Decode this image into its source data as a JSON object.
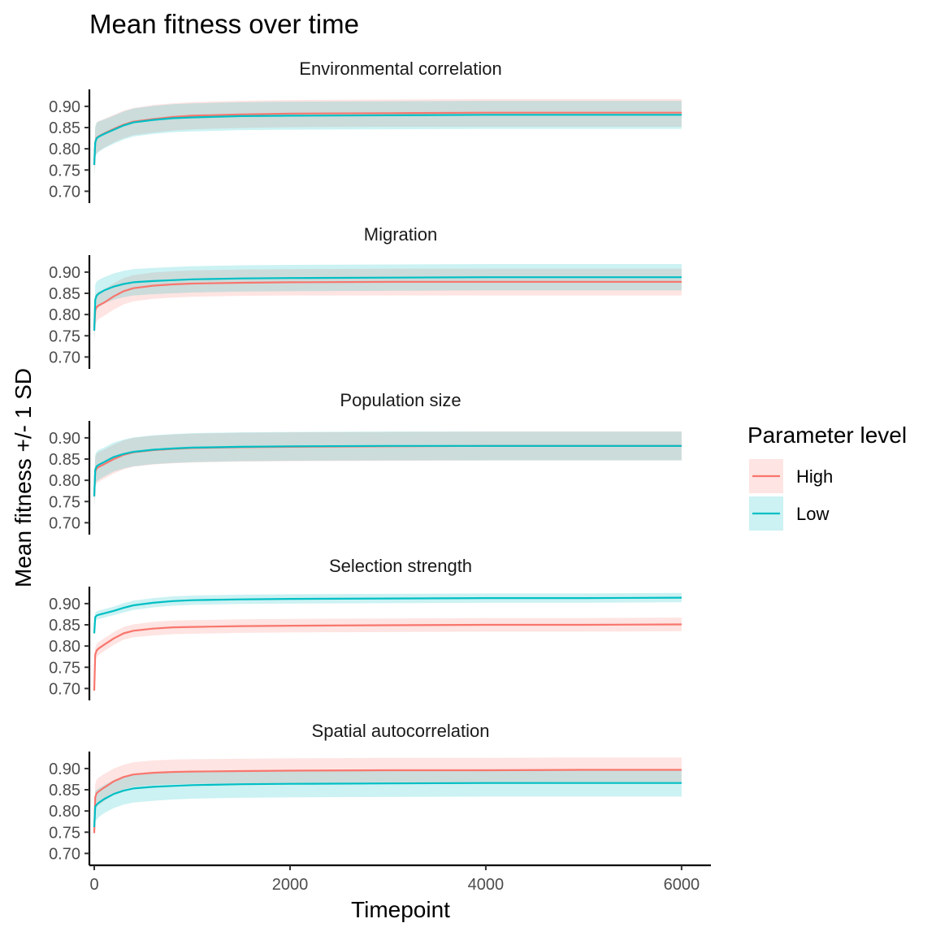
{
  "chart_data": {
    "type": "line",
    "title": "Mean fitness over time",
    "xlabel": "Timepoint",
    "ylabel": "Mean fitness +/- 1 SD",
    "xlim": [
      -50,
      6300
    ],
    "ylim": [
      0.672,
      0.94
    ],
    "x_ticks": [
      0,
      2000,
      4000,
      6000
    ],
    "y_ticks": [
      0.7,
      0.75,
      0.8,
      0.85,
      0.9
    ],
    "x_tick_labels": [
      "0",
      "2000",
      "4000",
      "6000"
    ],
    "y_tick_labels": [
      "0.70",
      "0.75",
      "0.80",
      "0.85",
      "0.90"
    ],
    "legend": {
      "title": "Parameter level",
      "position": "right",
      "entries": [
        {
          "label": "High",
          "color": "#F8766D"
        },
        {
          "label": "Low",
          "color": "#00BFC4"
        }
      ]
    },
    "grid": false,
    "bands": "mean +/- 1 SD ribbons",
    "x": [
      0,
      10,
      25,
      50,
      100,
      200,
      300,
      400,
      600,
      800,
      1000,
      1500,
      2000,
      3000,
      4000,
      5000,
      6000
    ],
    "panels": [
      {
        "strip": "Environmental correlation",
        "series": [
          {
            "name": "High",
            "mean": [
              0.762,
              0.815,
              0.826,
              0.83,
              0.836,
              0.847,
              0.857,
              0.864,
              0.87,
              0.875,
              0.878,
              0.881,
              0.883,
              0.884,
              0.885,
              0.885,
              0.885
            ],
            "lower": [
              0.735,
              0.78,
              0.79,
              0.795,
              0.803,
              0.815,
              0.825,
              0.832,
              0.838,
              0.843,
              0.846,
              0.849,
              0.851,
              0.852,
              0.852,
              0.852,
              0.852
            ],
            "upper": [
              0.789,
              0.85,
              0.862,
              0.866,
              0.87,
              0.88,
              0.89,
              0.896,
              0.903,
              0.907,
              0.91,
              0.913,
              0.915,
              0.916,
              0.917,
              0.917,
              0.917
            ]
          },
          {
            "name": "Low",
            "mean": [
              0.762,
              0.815,
              0.825,
              0.829,
              0.835,
              0.845,
              0.855,
              0.862,
              0.868,
              0.872,
              0.874,
              0.877,
              0.878,
              0.879,
              0.88,
              0.88,
              0.88
            ],
            "lower": [
              0.735,
              0.778,
              0.788,
              0.793,
              0.801,
              0.812,
              0.822,
              0.829,
              0.835,
              0.839,
              0.841,
              0.844,
              0.845,
              0.846,
              0.847,
              0.847,
              0.847
            ],
            "upper": [
              0.789,
              0.852,
              0.862,
              0.865,
              0.869,
              0.878,
              0.888,
              0.895,
              0.901,
              0.905,
              0.907,
              0.91,
              0.911,
              0.912,
              0.913,
              0.913,
              0.913
            ]
          }
        ]
      },
      {
        "strip": "Migration",
        "series": [
          {
            "name": "High",
            "mean": [
              0.762,
              0.81,
              0.818,
              0.822,
              0.828,
              0.843,
              0.855,
              0.862,
              0.868,
              0.871,
              0.873,
              0.875,
              0.876,
              0.877,
              0.877,
              0.877,
              0.877
            ],
            "lower": [
              0.735,
              0.775,
              0.785,
              0.79,
              0.797,
              0.812,
              0.824,
              0.831,
              0.837,
              0.84,
              0.842,
              0.844,
              0.845,
              0.845,
              0.845,
              0.845,
              0.845
            ],
            "upper": [
              0.789,
              0.845,
              0.851,
              0.854,
              0.859,
              0.874,
              0.886,
              0.893,
              0.899,
              0.902,
              0.904,
              0.906,
              0.907,
              0.908,
              0.908,
              0.908,
              0.908
            ]
          },
          {
            "name": "Low",
            "mean": [
              0.762,
              0.835,
              0.845,
              0.85,
              0.857,
              0.866,
              0.872,
              0.876,
              0.879,
              0.881,
              0.883,
              0.885,
              0.886,
              0.887,
              0.888,
              0.888,
              0.888
            ],
            "lower": [
              0.735,
              0.8,
              0.812,
              0.818,
              0.826,
              0.835,
              0.841,
              0.845,
              0.848,
              0.85,
              0.852,
              0.854,
              0.855,
              0.856,
              0.857,
              0.857,
              0.857
            ],
            "upper": [
              0.789,
              0.87,
              0.878,
              0.882,
              0.888,
              0.897,
              0.903,
              0.907,
              0.91,
              0.912,
              0.914,
              0.916,
              0.917,
              0.918,
              0.919,
              0.919,
              0.919
            ]
          }
        ]
      },
      {
        "strip": "Population size",
        "series": [
          {
            "name": "High",
            "mean": [
              0.762,
              0.82,
              0.828,
              0.832,
              0.838,
              0.85,
              0.86,
              0.866,
              0.871,
              0.874,
              0.876,
              0.878,
              0.879,
              0.88,
              0.881,
              0.881,
              0.881
            ],
            "lower": [
              0.735,
              0.785,
              0.793,
              0.797,
              0.804,
              0.816,
              0.826,
              0.832,
              0.837,
              0.84,
              0.842,
              0.844,
              0.845,
              0.846,
              0.847,
              0.847,
              0.847
            ],
            "upper": [
              0.789,
              0.855,
              0.863,
              0.867,
              0.872,
              0.884,
              0.894,
              0.9,
              0.905,
              0.908,
              0.91,
              0.912,
              0.913,
              0.914,
              0.915,
              0.915,
              0.915
            ]
          },
          {
            "name": "Low",
            "mean": [
              0.762,
              0.825,
              0.833,
              0.837,
              0.843,
              0.855,
              0.862,
              0.867,
              0.872,
              0.875,
              0.877,
              0.879,
              0.88,
              0.881,
              0.881,
              0.881,
              0.881
            ],
            "lower": [
              0.735,
              0.79,
              0.798,
              0.802,
              0.809,
              0.821,
              0.828,
              0.833,
              0.838,
              0.841,
              0.843,
              0.845,
              0.846,
              0.847,
              0.847,
              0.847,
              0.847
            ],
            "upper": [
              0.789,
              0.86,
              0.868,
              0.872,
              0.877,
              0.889,
              0.896,
              0.901,
              0.906,
              0.909,
              0.911,
              0.913,
              0.914,
              0.915,
              0.915,
              0.915,
              0.915
            ]
          }
        ]
      },
      {
        "strip": "Selection strength",
        "series": [
          {
            "name": "High",
            "mean": [
              0.695,
              0.78,
              0.79,
              0.795,
              0.803,
              0.818,
              0.83,
              0.836,
              0.841,
              0.844,
              0.845,
              0.847,
              0.848,
              0.849,
              0.85,
              0.85,
              0.851
            ],
            "lower": [
              0.685,
              0.765,
              0.775,
              0.78,
              0.788,
              0.803,
              0.815,
              0.821,
              0.825,
              0.828,
              0.829,
              0.831,
              0.832,
              0.833,
              0.834,
              0.834,
              0.835
            ],
            "upper": [
              0.705,
              0.795,
              0.805,
              0.81,
              0.818,
              0.833,
              0.845,
              0.851,
              0.857,
              0.86,
              0.861,
              0.863,
              0.864,
              0.865,
              0.866,
              0.866,
              0.867
            ]
          },
          {
            "name": "Low",
            "mean": [
              0.83,
              0.868,
              0.872,
              0.874,
              0.877,
              0.883,
              0.89,
              0.896,
              0.902,
              0.906,
              0.908,
              0.91,
              0.911,
              0.912,
              0.913,
              0.913,
              0.914
            ],
            "lower": [
              0.822,
              0.858,
              0.862,
              0.864,
              0.867,
              0.873,
              0.879,
              0.885,
              0.891,
              0.895,
              0.897,
              0.899,
              0.9,
              0.901,
              0.902,
              0.902,
              0.903
            ],
            "upper": [
              0.838,
              0.878,
              0.882,
              0.884,
              0.887,
              0.893,
              0.901,
              0.907,
              0.913,
              0.917,
              0.919,
              0.921,
              0.922,
              0.923,
              0.924,
              0.924,
              0.925
            ]
          }
        ]
      },
      {
        "strip": "Spatial autocorrelation",
        "series": [
          {
            "name": "High",
            "mean": [
              0.748,
              0.832,
              0.842,
              0.847,
              0.855,
              0.87,
              0.88,
              0.886,
              0.89,
              0.892,
              0.893,
              0.894,
              0.895,
              0.896,
              0.896,
              0.897,
              0.897
            ],
            "lower": [
              0.73,
              0.8,
              0.81,
              0.815,
              0.823,
              0.84,
              0.851,
              0.857,
              0.861,
              0.863,
              0.864,
              0.865,
              0.866,
              0.867,
              0.867,
              0.868,
              0.868
            ],
            "upper": [
              0.766,
              0.864,
              0.874,
              0.879,
              0.887,
              0.9,
              0.909,
              0.915,
              0.919,
              0.921,
              0.922,
              0.923,
              0.924,
              0.925,
              0.925,
              0.926,
              0.926
            ]
          },
          {
            "name": "Low",
            "mean": [
              0.762,
              0.81,
              0.815,
              0.82,
              0.828,
              0.84,
              0.848,
              0.853,
              0.857,
              0.859,
              0.861,
              0.863,
              0.864,
              0.865,
              0.866,
              0.866,
              0.866
            ],
            "lower": [
              0.735,
              0.773,
              0.78,
              0.786,
              0.795,
              0.807,
              0.815,
              0.82,
              0.824,
              0.827,
              0.829,
              0.831,
              0.832,
              0.833,
              0.834,
              0.834,
              0.834
            ],
            "upper": [
              0.789,
              0.847,
              0.85,
              0.854,
              0.861,
              0.873,
              0.881,
              0.886,
              0.89,
              0.891,
              0.893,
              0.895,
              0.896,
              0.897,
              0.898,
              0.898,
              0.898
            ]
          }
        ]
      }
    ]
  }
}
